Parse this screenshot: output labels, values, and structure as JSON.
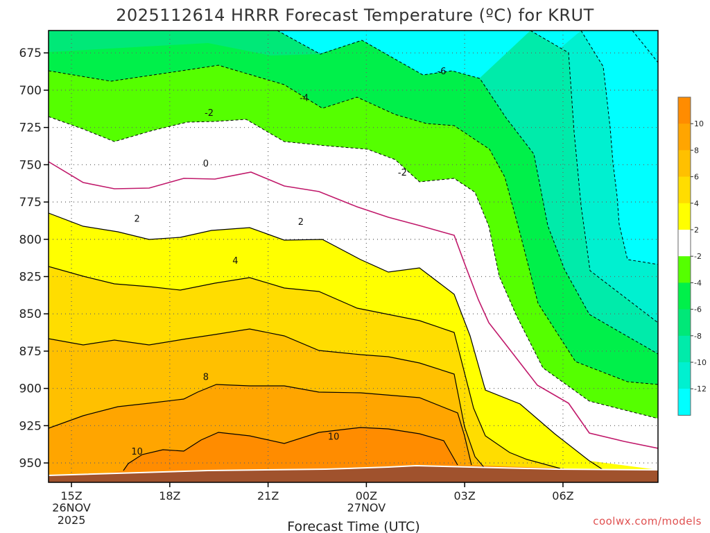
{
  "page": {
    "title": "2025112614 HRRR Forecast Temperature (ºC) for KRUT",
    "credit": "coolwx.com/models"
  },
  "colors": {
    "ground": "#a0522d",
    "zero_line": "#c0186a",
    "contour": "#000000",
    "bands": {
      "lt_m12": "#00ffff",
      "m12_m10": "#00f0d0",
      "m10_m8": "#00ebaa",
      "m8_m6": "#00e878",
      "m6_m4": "#00f04a",
      "m4_m2": "#55ff00",
      "m2_2": "#ffffff",
      "2_4": "#ffff00",
      "4_6": "#ffdd00",
      "6_8": "#ffc000",
      "8_10": "#ffa500",
      "gt_10": "#ff8c00"
    }
  },
  "chart_data": {
    "type": "contour",
    "title": "2025112614 HRRR Forecast Temperature (ºC) for KRUT",
    "xlabel": "Forecast Time (UTC)",
    "ylabel": "",
    "y_scale": "pressure (hPa), inverted",
    "xlim_hours_utc": [
      14.3,
      32.9
    ],
    "ylim": [
      963,
      660
    ],
    "x_ticks": [
      {
        "hour": 15,
        "label": "15Z",
        "sub1": "26NOV",
        "sub2": "2025"
      },
      {
        "hour": 18,
        "label": "18Z",
        "sub1": "",
        "sub2": ""
      },
      {
        "hour": 21,
        "label": "21Z",
        "sub1": "",
        "sub2": ""
      },
      {
        "hour": 24,
        "label": "00Z",
        "sub1": "27NOV",
        "sub2": ""
      },
      {
        "hour": 27,
        "label": "03Z",
        "sub1": "",
        "sub2": ""
      },
      {
        "hour": 30,
        "label": "06Z",
        "sub1": "",
        "sub2": ""
      }
    ],
    "y_ticks": [
      675,
      700,
      725,
      750,
      775,
      800,
      825,
      850,
      875,
      900,
      925,
      950
    ],
    "grid": "dotted",
    "colorbar": {
      "placement": "right",
      "ticks": [
        10,
        8,
        6,
        4,
        2,
        -2,
        -4,
        -6,
        -8,
        -10,
        -12
      ]
    },
    "contour_labels": [
      {
        "text": "-6",
        "hour": 26.3,
        "p": 687
      },
      {
        "text": "-4",
        "hour": 22.1,
        "p": 705
      },
      {
        "text": "-2",
        "hour": 19.2,
        "p": 715
      },
      {
        "text": "-2",
        "hour": 25.1,
        "p": 755
      },
      {
        "text": "0",
        "hour": 19.1,
        "p": 749
      },
      {
        "text": "2",
        "hour": 17.0,
        "p": 786
      },
      {
        "text": "2",
        "hour": 22.0,
        "p": 788
      },
      {
        "text": "4",
        "hour": 20.0,
        "p": 814
      },
      {
        "text": "8",
        "hour": 19.1,
        "p": 892
      },
      {
        "text": "10",
        "hour": 23.0,
        "p": 932
      },
      {
        "text": "10",
        "hour": 17.0,
        "p": 942
      }
    ]
  }
}
